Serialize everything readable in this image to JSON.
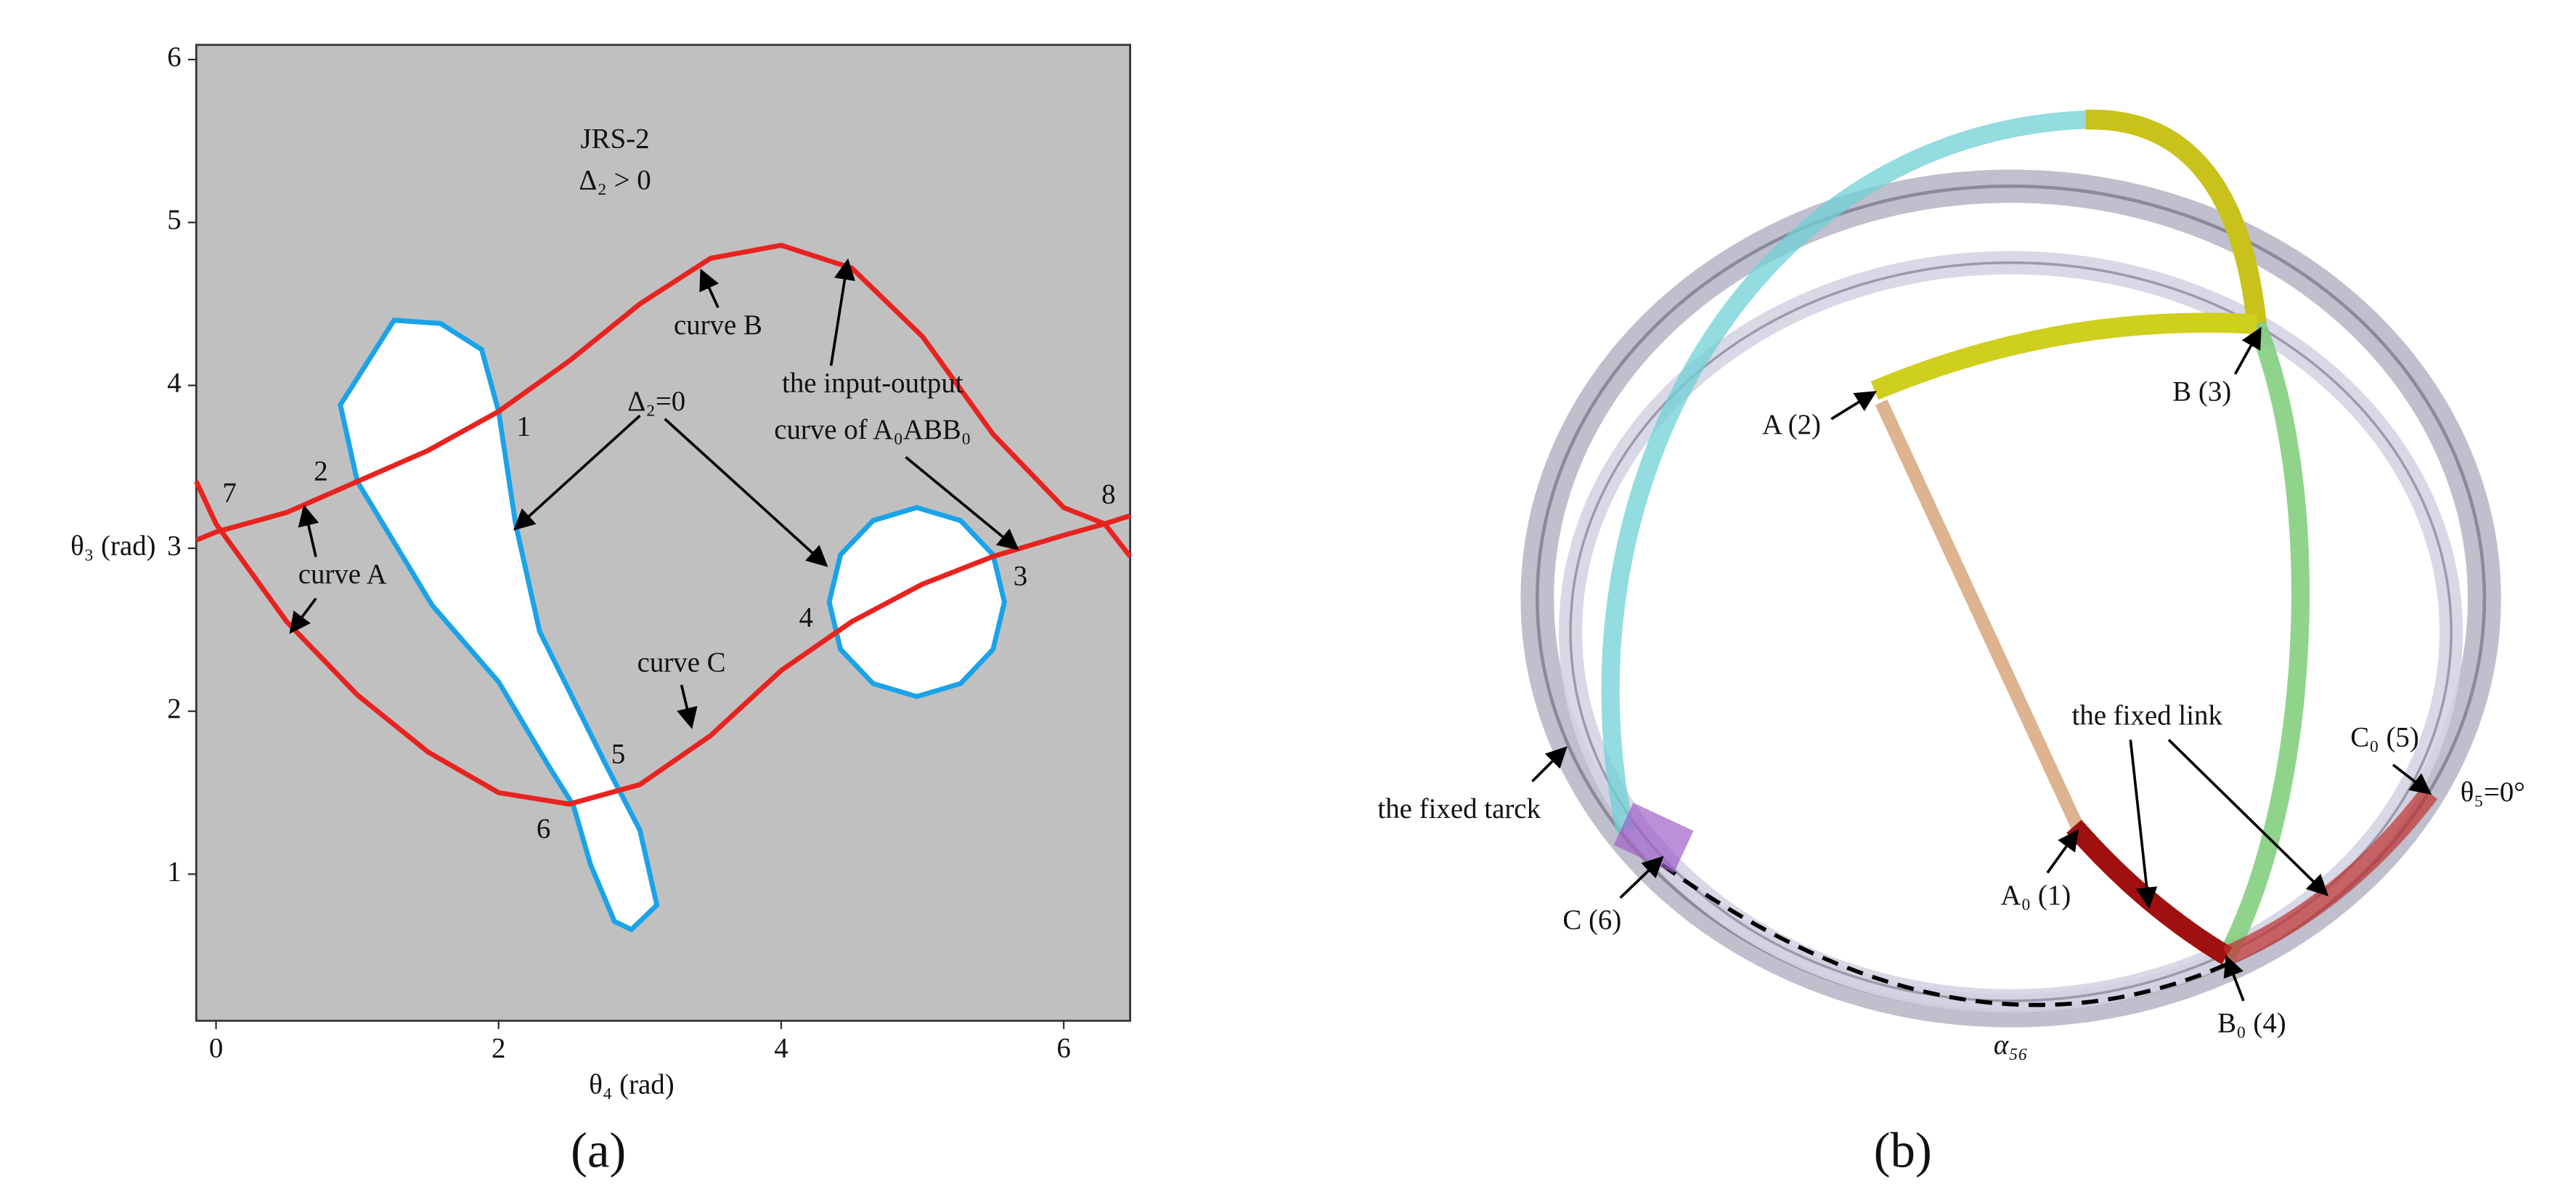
{
  "chart_data": {
    "type": "line",
    "xlabel": "θ₄ (rad)",
    "ylabel": "θ₃ (rad)",
    "xlim": [
      -0.14,
      6.47
    ],
    "ylim": [
      0.1,
      6.09
    ],
    "xticks": [
      0,
      2,
      4,
      6
    ],
    "yticks": [
      1,
      2,
      3,
      4,
      5,
      6
    ],
    "background": "#c0c0c0",
    "series": [
      {
        "color": "#e8231f",
        "closed": false,
        "x": [
          -0.14,
          0,
          0.5,
          1,
          1.5,
          2,
          2.5,
          3,
          3.5,
          4,
          4.5,
          5,
          5.5,
          6,
          6.29,
          6.47
        ],
        "values": [
          3.05,
          3.1,
          3.22,
          3.41,
          3.6,
          3.84,
          4.15,
          4.5,
          4.78,
          4.86,
          4.72,
          4.3,
          3.7,
          3.25,
          3.15,
          2.95
        ]
      },
      {
        "color": "#e8231f",
        "closed": false,
        "x": [
          -0.14,
          0,
          0.5,
          1,
          1.5,
          2,
          2.5,
          3,
          3.5,
          4,
          4.5,
          5,
          5.5,
          6,
          6.29,
          6.47
        ],
        "values": [
          3.41,
          3.15,
          2.55,
          2.1,
          1.75,
          1.5,
          1.43,
          1.55,
          1.85,
          2.25,
          2.55,
          2.78,
          2.95,
          3.08,
          3.15,
          3.2
        ]
      },
      {
        "color": "#1aa3e8",
        "closed": true,
        "x": [
          1.26,
          0.88,
          1.0,
          1.53,
          2.0,
          2.35,
          2.53,
          2.65,
          2.82,
          2.94,
          3.12,
          3.0,
          2.76,
          2.29,
          2.12,
          2.0,
          1.88,
          1.59
        ],
        "values": [
          4.4,
          3.88,
          3.41,
          2.65,
          2.18,
          1.67,
          1.42,
          1.06,
          0.71,
          0.66,
          0.81,
          1.27,
          1.67,
          2.49,
          3.15,
          3.84,
          4.22,
          4.38
        ]
      },
      {
        "color": "#1aa3e8",
        "closed": true,
        "x": [
          5.58,
          5.5,
          5.27,
          4.96,
          4.65,
          4.42,
          4.34,
          4.42,
          4.65,
          4.96,
          5.27,
          5.5
        ],
        "values": [
          2.67,
          2.96,
          3.17,
          3.25,
          3.17,
          2.96,
          2.67,
          2.38,
          2.17,
          2.09,
          2.17,
          2.38
        ]
      }
    ],
    "annotations": [
      "JRS-2",
      "Δ₂ > 0",
      "curve B",
      "Δ₂=0",
      "the input-output",
      "curve of A₀ABB₀",
      "curve A",
      "curve C",
      "1",
      "2",
      "3",
      "4",
      "5",
      "6",
      "7",
      "8"
    ]
  },
  "panel_labels": [
    "(a)",
    "(b)"
  ],
  "panel_b": {
    "labels": [
      "A (2)",
      "B (3)",
      "the fixed link",
      "C₀ (5)",
      "θ₅=0°",
      "the fixed tarck",
      "C (6)",
      "A₀ (1)",
      "B₀ (4)",
      "α₅₆"
    ]
  }
}
